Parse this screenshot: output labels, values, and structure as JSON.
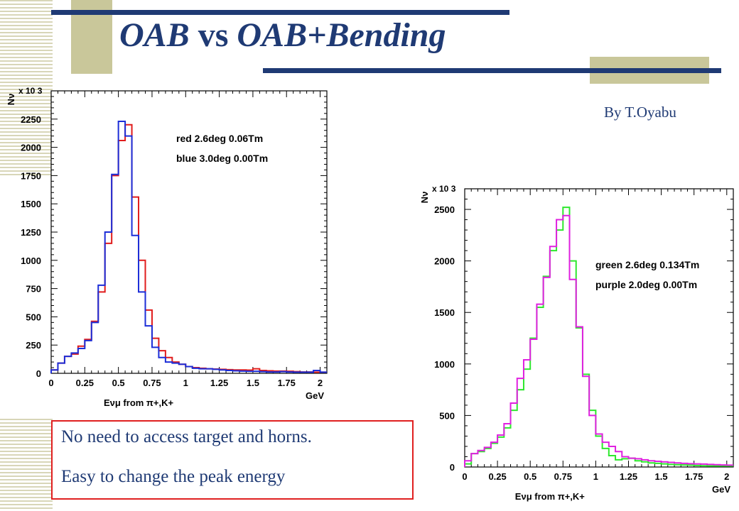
{
  "slide": {
    "title_part1": "OAB",
    "title_vs": "vs",
    "title_part2": "OAB+Bending",
    "author": "By T.Oyabu",
    "notes": [
      "No need to access target and horns.",
      "Easy to change the peak energy"
    ],
    "colors": {
      "title": "#1f3a74",
      "accent_square": "#c9c79a",
      "note_border": "#e02020"
    }
  },
  "chart_data": [
    {
      "type": "line",
      "ylabel": "Nν",
      "y_multiplier": "x 10 3",
      "xlabel": "Eνμ from π+,K+",
      "x_unit": "GeV",
      "xlim": [
        0,
        2.05
      ],
      "ylim": [
        0,
        2500
      ],
      "x_ticks": [
        "0",
        "0.25",
        "0.5",
        "0.75",
        "1",
        "1.25",
        "1.5",
        "1.75",
        "2"
      ],
      "y_ticks": [
        "0",
        "250",
        "500",
        "750",
        "1000",
        "1250",
        "1500",
        "1750",
        "2000",
        "2250"
      ],
      "bin_width": 0.05,
      "legend": [
        "red 2.6deg 0.06Tm",
        "blue 3.0deg 0.00Tm"
      ],
      "series": [
        {
          "name": "red 2.6deg 0.06Tm",
          "color": "#e01c1c",
          "values": [
            30,
            90,
            150,
            170,
            240,
            300,
            460,
            720,
            1150,
            1750,
            2060,
            2200,
            1560,
            1000,
            560,
            310,
            200,
            140,
            100,
            80,
            60,
            50,
            45,
            40,
            38,
            35,
            32,
            30,
            30,
            28,
            40,
            25,
            22,
            20,
            20,
            18,
            15,
            12,
            12,
            10,
            10
          ]
        },
        {
          "name": "blue 3.0deg 0.00Tm",
          "color": "#1c2ed8",
          "values": [
            30,
            90,
            150,
            180,
            220,
            290,
            450,
            780,
            1250,
            1760,
            2230,
            2100,
            1220,
            720,
            420,
            230,
            140,
            100,
            90,
            80,
            60,
            45,
            40,
            40,
            35,
            30,
            25,
            22,
            20,
            18,
            18,
            15,
            12,
            12,
            15,
            12,
            10,
            10,
            10,
            25,
            10
          ]
        }
      ]
    },
    {
      "type": "line",
      "ylabel": "Nν",
      "y_multiplier": "x 10 3",
      "xlabel": "Eνμ from π+,K+",
      "x_unit": "GeV",
      "xlim": [
        0,
        2.05
      ],
      "ylim": [
        0,
        2700
      ],
      "x_ticks": [
        "0",
        "0.25",
        "0.5",
        "0.75",
        "1",
        "1.25",
        "1.5",
        "1.75",
        "2"
      ],
      "y_ticks": [
        "0",
        "500",
        "1000",
        "1500",
        "2000",
        "2500"
      ],
      "bin_width": 0.05,
      "legend": [
        "green 2.6deg 0.134Tm",
        "purple 2.0deg 0.00Tm"
      ],
      "series": [
        {
          "name": "green 2.6deg 0.134Tm",
          "color": "#2ee82e",
          "values": [
            30,
            130,
            150,
            180,
            230,
            290,
            380,
            550,
            750,
            950,
            1250,
            1550,
            1850,
            2100,
            2300,
            2520,
            2000,
            1350,
            900,
            550,
            300,
            180,
            110,
            70,
            80,
            85,
            60,
            50,
            40,
            35,
            30,
            25,
            22,
            20,
            18,
            15,
            12,
            10,
            10,
            10,
            10
          ]
        },
        {
          "name": "purple 2.0deg 0.00Tm",
          "color": "#e020e0",
          "values": [
            60,
            130,
            160,
            190,
            240,
            310,
            420,
            620,
            860,
            1040,
            1240,
            1580,
            1840,
            2140,
            2400,
            2440,
            1820,
            1360,
            880,
            500,
            320,
            240,
            200,
            150,
            100,
            85,
            80,
            70,
            60,
            55,
            50,
            45,
            40,
            35,
            32,
            30,
            28,
            25,
            22,
            20,
            18
          ]
        }
      ]
    }
  ]
}
